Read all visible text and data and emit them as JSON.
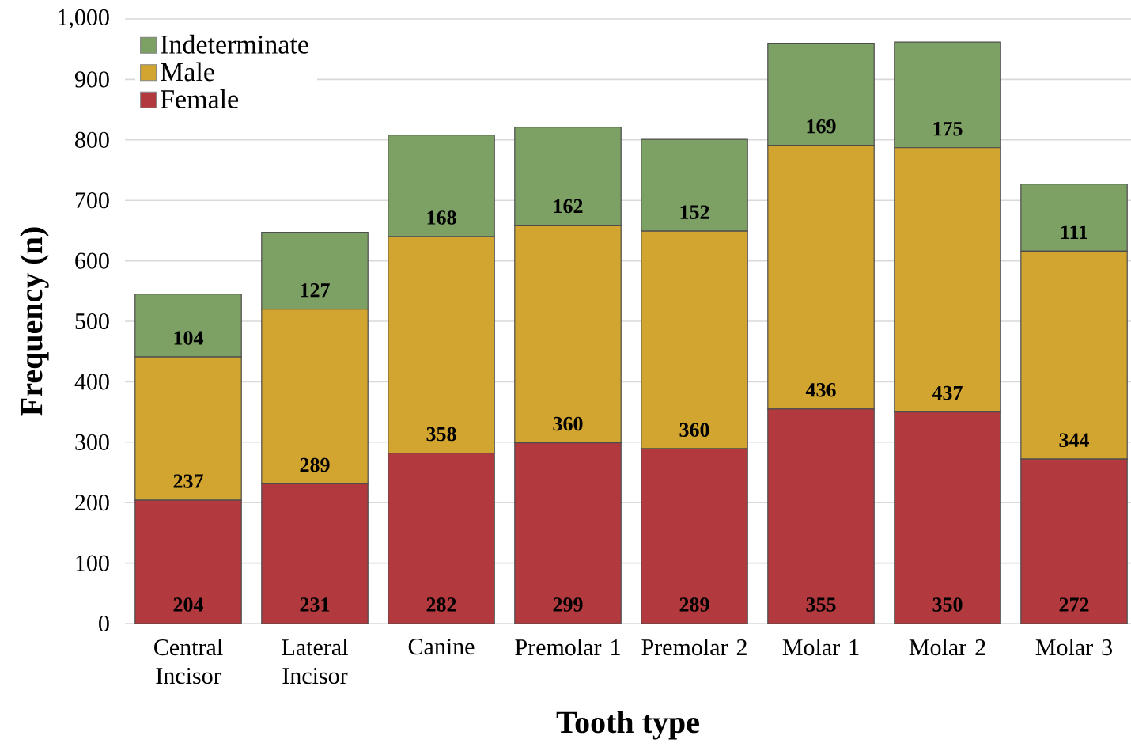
{
  "chart_data": {
    "type": "bar",
    "stacked": true,
    "xlabel": "Tooth type",
    "ylabel": "Frequency (n)",
    "categories": [
      "Central Incisor",
      "Lateral Incisor",
      "Canine",
      "Premolar 1",
      "Premolar 2",
      "Molar 1",
      "Molar 2",
      "Molar 3"
    ],
    "series": [
      {
        "name": "Female",
        "color": "#b23a3e",
        "values": [
          204,
          231,
          282,
          299,
          289,
          355,
          350,
          272
        ]
      },
      {
        "name": "Male",
        "color": "#d2a530",
        "values": [
          237,
          289,
          358,
          360,
          360,
          436,
          437,
          344
        ]
      },
      {
        "name": "Indeterminate",
        "color": "#7da064",
        "values": [
          104,
          127,
          168,
          162,
          152,
          169,
          175,
          111
        ]
      }
    ],
    "ylim": [
      0,
      1000
    ],
    "yticks": [
      0,
      100,
      200,
      300,
      400,
      500,
      600,
      700,
      800,
      900,
      {
        "value": 1000,
        "label": "1,000"
      }
    ],
    "grid": "y",
    "legend": "top left",
    "data_labels": true
  }
}
